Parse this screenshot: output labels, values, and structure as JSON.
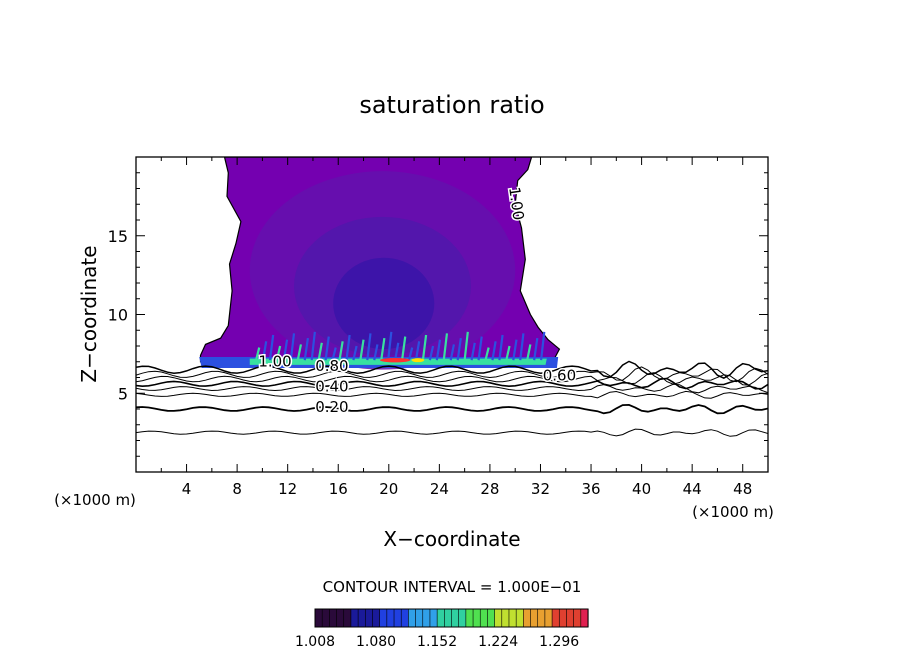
{
  "chart_data": {
    "type": "contour",
    "title": "saturation ratio",
    "xlabel": "X−coordinate",
    "ylabel": "Z−coordinate",
    "x_unit_left": "(×1000 m)",
    "x_unit_right": "(×1000 m)",
    "xlim": [
      0,
      50
    ],
    "ylim": [
      0,
      20
    ],
    "xticks": [
      4,
      8,
      12,
      16,
      20,
      24,
      28,
      32,
      36,
      40,
      44,
      48
    ],
    "yticks": [
      5,
      10,
      15
    ],
    "contour_labels": [
      "1.00",
      "1.00",
      "0.80",
      "0.80",
      "0.60",
      "0.40",
      "0.20"
    ],
    "footer": "CONTOUR INTERVAL = 1.000E−01",
    "colorbar_ticks": [
      "1.008",
      "1.080",
      "1.152",
      "1.224",
      "1.296"
    ],
    "colorbar_range": [
      1.008,
      1.33
    ],
    "colors": {
      "plume": "#7400b0",
      "core_dark": "#3a14a8",
      "core_mid": "#5018ac",
      "inner": "#6410ae",
      "band_green": "#38e0a0",
      "band_blue": "#2c50e0",
      "band_red": "#ff3030",
      "band_yellow": "#ffe000"
    }
  }
}
